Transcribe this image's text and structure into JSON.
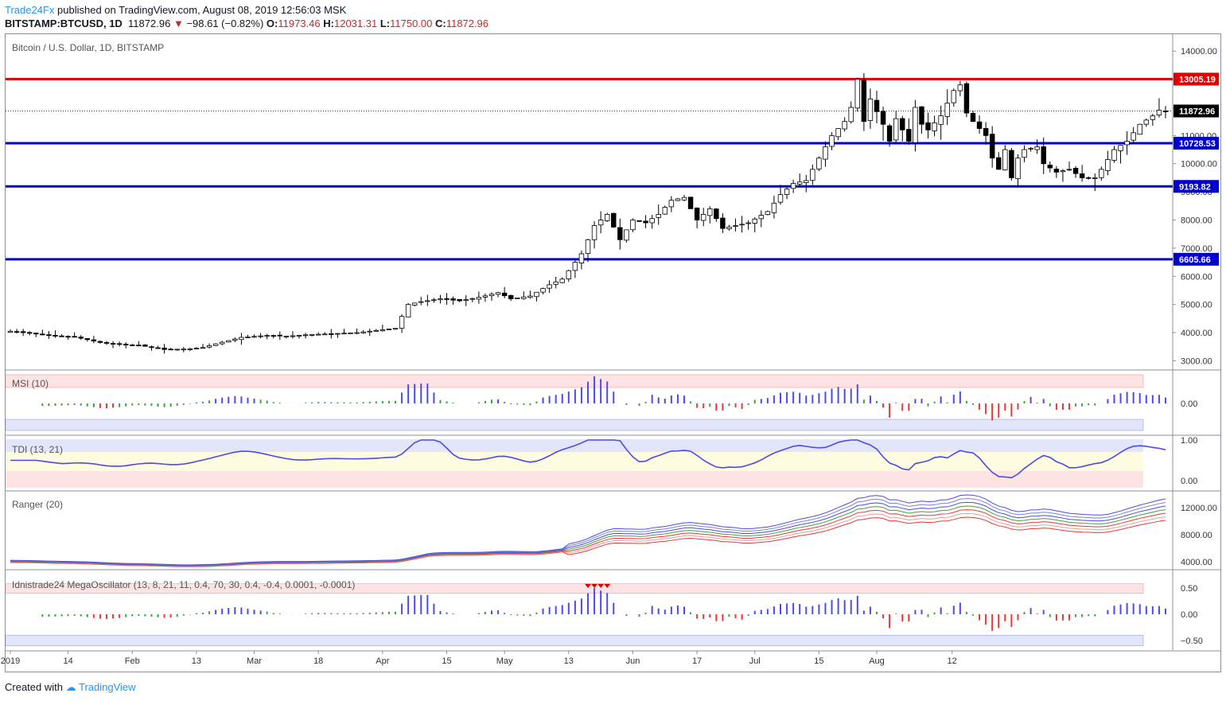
{
  "header": {
    "publisher": "Trade24Fx",
    "published_text": "published on TradingView.com, August 08, 2019 12:56:03 MSK",
    "symbol": "BITSTAMP:BTCUSD, 1D",
    "last": "11872.96",
    "change": "−98.61 (−0.82%)",
    "o_label": "O:",
    "o": "11973.46",
    "h_label": "H:",
    "h": "12031.31",
    "l_label": "L:",
    "l": "11750.00",
    "c_label": "C:",
    "c": "11872.96"
  },
  "footer": {
    "created": "Created with",
    "brand": "TradingView"
  },
  "colors": {
    "up": "#ffffff",
    "down": "#000000",
    "support": "#0000cc",
    "resistance": "#e00000",
    "osc_pos": "#4b4be8",
    "osc_neg": "#e53935",
    "osc_flat": "#43a047"
  },
  "chart_data": {
    "type": "candlestick",
    "title": "Bitcoin / U.S. Dollar, 1D, BITSTAMP",
    "x_ticks": [
      "2019",
      "14",
      "Feb",
      "13",
      "Mar",
      "18",
      "Apr",
      "15",
      "May",
      "13",
      "Jun",
      "17",
      "Jul",
      "15",
      "Aug",
      "12"
    ],
    "y_ticks": [
      "14000.00",
      "13000.00",
      "12000.00",
      "11000.00",
      "10000.00",
      "9000.00",
      "8000.00",
      "7000.00",
      "6000.00",
      "5000.00",
      "4000.00",
      "3000.00"
    ],
    "ylim": [
      2700,
      14600
    ],
    "last_price": 11872.96,
    "levels": [
      {
        "value": 13005.19,
        "label": "13005.19",
        "kind": "resistance"
      },
      {
        "value": 10728.53,
        "label": "10728.53",
        "kind": "support"
      },
      {
        "value": 9193.82,
        "label": "9193.82",
        "kind": "support"
      },
      {
        "value": 6605.66,
        "label": "6605.66",
        "kind": "support"
      }
    ],
    "last_label": "11872.96",
    "close_path": [
      [
        0,
        4050
      ],
      [
        6,
        3900
      ],
      [
        10,
        3850
      ],
      [
        14,
        3650
      ],
      [
        17,
        3580
      ],
      [
        20,
        3550
      ],
      [
        24,
        3400
      ],
      [
        28,
        3420
      ],
      [
        30,
        3470
      ],
      [
        32,
        3600
      ],
      [
        36,
        3830
      ],
      [
        40,
        3900
      ],
      [
        43,
        3870
      ],
      [
        46,
        3920
      ],
      [
        50,
        3960
      ],
      [
        54,
        4000
      ],
      [
        58,
        4100
      ],
      [
        60,
        4150
      ],
      [
        62,
        5000
      ],
      [
        64,
        5100
      ],
      [
        67,
        5200
      ],
      [
        70,
        5130
      ],
      [
        73,
        5250
      ],
      [
        76,
        5420
      ],
      [
        78,
        5200
      ],
      [
        81,
        5300
      ],
      [
        84,
        5700
      ],
      [
        86,
        5900
      ],
      [
        89,
        6800
      ],
      [
        91,
        7800
      ],
      [
        93,
        8200
      ],
      [
        95,
        7300
      ],
      [
        97,
        8000
      ],
      [
        99,
        7900
      ],
      [
        101,
        8200
      ],
      [
        103,
        8700
      ],
      [
        105,
        8800
      ],
      [
        107,
        8000
      ],
      [
        109,
        8400
      ],
      [
        111,
        7700
      ],
      [
        113,
        7800
      ],
      [
        115,
        7900
      ],
      [
        118,
        8300
      ],
      [
        120,
        8900
      ],
      [
        122,
        9300
      ],
      [
        124,
        9400
      ],
      [
        126,
        10200
      ],
      [
        128,
        11000
      ],
      [
        130,
        11500
      ],
      [
        131,
        12000
      ],
      [
        132,
        13000
      ],
      [
        133,
        11500
      ],
      [
        134,
        12300
      ],
      [
        136,
        11400
      ],
      [
        137,
        10800
      ],
      [
        138,
        11600
      ],
      [
        140,
        10800
      ],
      [
        141,
        12000
      ],
      [
        142,
        11400
      ],
      [
        143,
        11200
      ],
      [
        145,
        11700
      ],
      [
        147,
        12600
      ],
      [
        148,
        12800
      ],
      [
        149,
        11800
      ],
      [
        150,
        11500
      ],
      [
        152,
        11000
      ],
      [
        153,
        10200
      ],
      [
        154,
        9800
      ],
      [
        155,
        10500
      ],
      [
        156,
        9500
      ],
      [
        157,
        10200
      ],
      [
        158,
        10500
      ],
      [
        160,
        10600
      ],
      [
        161,
        10000
      ],
      [
        163,
        9700
      ],
      [
        165,
        9800
      ],
      [
        167,
        9500
      ],
      [
        169,
        9500
      ],
      [
        170,
        9800
      ],
      [
        172,
        10500
      ],
      [
        174,
        10800
      ],
      [
        176,
        11400
      ],
      [
        178,
        11700
      ],
      [
        179,
        11900
      ],
      [
        180,
        11873
      ]
    ],
    "msi_axis": [
      "0.00"
    ],
    "tdi_axis": [
      "1.00",
      "0.00"
    ],
    "ranger_axis": [
      "12000.00",
      "8000.00",
      "4000.00"
    ],
    "mega_axis": [
      "0.50",
      "0.00",
      "−0.50"
    ],
    "panes": [
      {
        "key": "msi",
        "label": "MSI (10)"
      },
      {
        "key": "tdi",
        "label": "TDI (13, 21)"
      },
      {
        "key": "ranger",
        "label": "Ranger (20)"
      },
      {
        "key": "mega",
        "label": "Idnistrade24 MegaOscillator (13, 8, 21, 11, 0.4, 70, 30, 0.4, -0.4, 0.0001, -0.0001)"
      }
    ]
  }
}
